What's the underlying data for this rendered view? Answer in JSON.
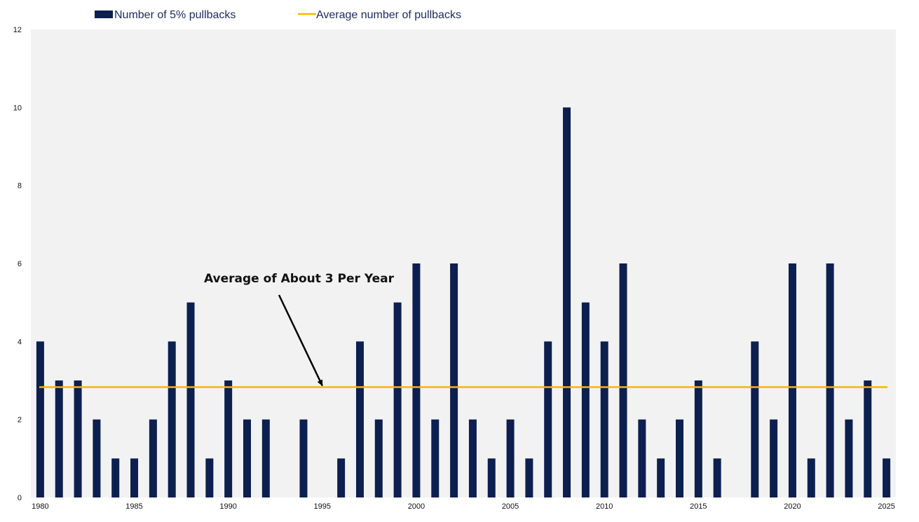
{
  "chart_data": {
    "type": "bar",
    "title": "",
    "xlabel": "",
    "ylabel": "",
    "x": [
      1980,
      1981,
      1982,
      1983,
      1984,
      1985,
      1986,
      1987,
      1988,
      1989,
      1990,
      1991,
      1992,
      1993,
      1994,
      1995,
      1996,
      1997,
      1998,
      1999,
      2000,
      2001,
      2002,
      2003,
      2004,
      2005,
      2006,
      2007,
      2008,
      2009,
      2010,
      2011,
      2012,
      2013,
      2014,
      2015,
      2016,
      2017,
      2018,
      2019,
      2020,
      2021,
      2022,
      2023,
      2024,
      2025
    ],
    "series": [
      {
        "name": "Number of 5% pullbacks",
        "color": "#0c1f4f",
        "values": [
          4,
          3,
          3,
          2,
          1,
          1,
          2,
          4,
          5,
          1,
          3,
          2,
          2,
          0,
          2,
          0,
          1,
          4,
          2,
          5,
          6,
          2,
          6,
          2,
          1,
          2,
          1,
          4,
          10,
          5,
          4,
          6,
          2,
          1,
          2,
          3,
          1,
          0,
          4,
          2,
          6,
          1,
          6,
          2,
          3,
          1
        ]
      },
      {
        "name": "Average number of pullbacks",
        "color": "#f5b800",
        "type": "line",
        "value": 2.83
      }
    ],
    "x_tick_labels": [
      "1980",
      "1985",
      "1990",
      "1995",
      "2000",
      "2005",
      "2010",
      "2015",
      "2020",
      "2025"
    ],
    "y_tick_labels": [
      "0",
      "2",
      "4",
      "6",
      "8",
      "10",
      "12"
    ],
    "ylim": [
      0,
      12
    ],
    "y_ticks": [
      0,
      2,
      4,
      6,
      8,
      10,
      12
    ],
    "grid": false,
    "plot_background": "#f2f2f2",
    "legend_position": "top-left",
    "annotation": {
      "text": "Average of About 3 Per Year",
      "arrow_target_year": 1995,
      "arrow_target_value": 2.83
    }
  }
}
